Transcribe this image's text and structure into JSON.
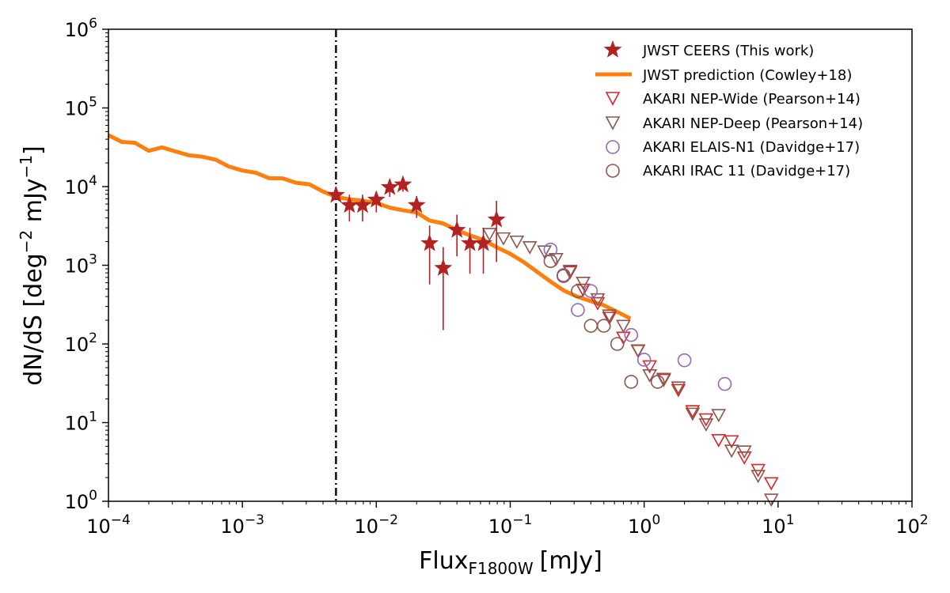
{
  "chart_data": {
    "type": "scatter",
    "x_scale": "log",
    "y_scale": "log",
    "xlim": [
      0.0001,
      100
    ],
    "ylim": [
      1,
      1000000
    ],
    "xlabel": {
      "main": "Flux",
      "sub": "F1800W",
      "unit": "[mJy]"
    },
    "ylabel": {
      "main": "dN/dS [deg",
      "sup1": "−2",
      "mid": " mJy",
      "sup2": "−1",
      "end": "]"
    },
    "x_ticks": [
      {
        "base": "10",
        "exp": "−4"
      },
      {
        "base": "10",
        "exp": "−3"
      },
      {
        "base": "10",
        "exp": "−2"
      },
      {
        "base": "10",
        "exp": "−1"
      },
      {
        "base": "10",
        "exp": "0"
      },
      {
        "base": "10",
        "exp": "1"
      },
      {
        "base": "10",
        "exp": "2"
      }
    ],
    "y_ticks": [
      {
        "base": "10",
        "exp": "0"
      },
      {
        "base": "10",
        "exp": "1"
      },
      {
        "base": "10",
        "exp": "2"
      },
      {
        "base": "10",
        "exp": "3"
      },
      {
        "base": "10",
        "exp": "4"
      },
      {
        "base": "10",
        "exp": "5"
      },
      {
        "base": "10",
        "exp": "6"
      }
    ],
    "vline": {
      "x": 0.005,
      "style": "dash-dot",
      "color": "#000000"
    },
    "legend": {
      "position": "top-right",
      "entries": [
        "JWST CEERS (This work)",
        "JWST prediction (Cowley+18)",
        "AKARI NEP-Wide (Pearson+14)",
        "AKARI NEP-Deep (Pearson+14)",
        "AKARI ELAIS-N1 (Davidge+17)",
        "AKARI IRAC 11 (Davidge+17)"
      ]
    },
    "series": [
      {
        "name": "JWST prediction (Cowley+18)",
        "type": "line",
        "color": "#ff7f0e",
        "points": [
          [
            0.0001,
            45000
          ],
          [
            0.000126,
            37000
          ],
          [
            0.000158,
            36000
          ],
          [
            0.0002,
            28500
          ],
          [
            0.000251,
            31500
          ],
          [
            0.000316,
            28000
          ],
          [
            0.000398,
            25000
          ],
          [
            0.0005,
            24000
          ],
          [
            0.000631,
            22000
          ],
          [
            0.000794,
            18000
          ],
          [
            0.001,
            16000
          ],
          [
            0.00126,
            15000
          ],
          [
            0.00158,
            12800
          ],
          [
            0.002,
            12700
          ],
          [
            0.00251,
            11200
          ],
          [
            0.00316,
            10700
          ],
          [
            0.00398,
            8700
          ],
          [
            0.005,
            7400
          ],
          [
            0.0063,
            6900
          ],
          [
            0.0079,
            6600
          ],
          [
            0.01,
            6200
          ],
          [
            0.0126,
            5400
          ],
          [
            0.0158,
            5000
          ],
          [
            0.02,
            4700
          ],
          [
            0.025,
            3700
          ],
          [
            0.0316,
            3400
          ],
          [
            0.04,
            2800
          ],
          [
            0.05,
            2400
          ],
          [
            0.063,
            2100
          ],
          [
            0.079,
            1700
          ],
          [
            0.1,
            1400
          ],
          [
            0.126,
            1100
          ],
          [
            0.158,
            830
          ],
          [
            0.2,
            620
          ],
          [
            0.25,
            480
          ],
          [
            0.316,
            400
          ],
          [
            0.4,
            350
          ],
          [
            0.5,
            310
          ],
          [
            0.631,
            255
          ],
          [
            0.79,
            210
          ]
        ]
      },
      {
        "name": "JWST CEERS (This work)",
        "type": "scatter",
        "marker": "star",
        "color": "#b22222",
        "points": [
          {
            "x": 0.005,
            "y": 7800,
            "lo": 7800,
            "hi": 7800
          },
          {
            "x": 0.0063,
            "y": 5800,
            "lo": 3600,
            "hi": 7900
          },
          {
            "x": 0.0079,
            "y": 5800,
            "lo": 3600,
            "hi": 7900
          },
          {
            "x": 0.01,
            "y": 6800,
            "lo": 4700,
            "hi": 8700
          },
          {
            "x": 0.0126,
            "y": 9800,
            "lo": 7400,
            "hi": 12200
          },
          {
            "x": 0.0158,
            "y": 10600,
            "lo": 8600,
            "hi": 12700
          },
          {
            "x": 0.02,
            "y": 5800,
            "lo": 4000,
            "hi": 7600
          },
          {
            "x": 0.025,
            "y": 1900,
            "lo": 570,
            "hi": 3200
          },
          {
            "x": 0.0316,
            "y": 920,
            "lo": 150,
            "hi": 1700
          },
          {
            "x": 0.04,
            "y": 2800,
            "lo": 1300,
            "hi": 4400
          },
          {
            "x": 0.05,
            "y": 1900,
            "lo": 780,
            "hi": 3000
          },
          {
            "x": 0.063,
            "y": 1900,
            "lo": 780,
            "hi": 3000
          },
          {
            "x": 0.079,
            "y": 3800,
            "lo": 1100,
            "hi": 6600
          }
        ]
      },
      {
        "name": "AKARI NEP-Wide (Pearson+14)",
        "type": "scatter",
        "marker": "triangle-down",
        "color": "#d62728",
        "points": [
          [
            0.28,
            820
          ],
          [
            0.35,
            490
          ],
          [
            0.45,
            330
          ],
          [
            0.55,
            215
          ],
          [
            0.7,
            120
          ],
          [
            0.9,
            82
          ],
          [
            1.1,
            52
          ],
          [
            1.4,
            35
          ],
          [
            1.8,
            26
          ],
          [
            2.3,
            14
          ],
          [
            2.9,
            11
          ],
          [
            3.6,
            6
          ],
          [
            4.5,
            5.8
          ],
          [
            5.6,
            3.6
          ],
          [
            7.1,
            2.5
          ],
          [
            8.9,
            1.7
          ]
        ]
      },
      {
        "name": "AKARI NEP-Deep (Pearson+14)",
        "type": "scatter",
        "marker": "triangle-down",
        "color": "#8c564b",
        "points": [
          [
            0.07,
            2500
          ],
          [
            0.089,
            2200
          ],
          [
            0.112,
            2000
          ],
          [
            0.14,
            1700
          ],
          [
            0.18,
            1500
          ],
          [
            0.22,
            1200
          ],
          [
            0.28,
            850
          ],
          [
            0.35,
            600
          ],
          [
            0.45,
            370
          ],
          [
            0.55,
            230
          ],
          [
            0.7,
            170
          ],
          [
            0.9,
            83
          ],
          [
            1.1,
            40
          ],
          [
            1.4,
            36
          ],
          [
            1.8,
            28
          ],
          [
            2.3,
            13
          ],
          [
            2.9,
            9.5
          ],
          [
            3.6,
            12.5
          ],
          [
            4.5,
            4.4
          ],
          [
            5.6,
            4.3
          ],
          [
            7.1,
            2.1
          ],
          [
            8.9,
            1.05
          ]
        ]
      },
      {
        "name": "AKARI ELAIS-N1 (Davidge+17)",
        "type": "scatter",
        "marker": "circle-open",
        "color": "#9467bd",
        "points": [
          [
            0.2,
            1580
          ],
          [
            0.25,
            750
          ],
          [
            0.32,
            270
          ],
          [
            0.4,
            470
          ],
          [
            0.8,
            130
          ],
          [
            1.0,
            63
          ],
          [
            2.0,
            62
          ],
          [
            4.0,
            31
          ]
        ]
      },
      {
        "name": "AKARI IRAC 11 (Davidge+17)",
        "type": "scatter",
        "marker": "circle-open",
        "color": "#8c564b",
        "points": [
          [
            0.2,
            1130
          ],
          [
            0.25,
            730
          ],
          [
            0.32,
            470
          ],
          [
            0.4,
            170
          ],
          [
            0.5,
            170
          ],
          [
            0.63,
            100
          ],
          [
            0.8,
            33
          ],
          [
            1.26,
            33
          ]
        ]
      }
    ]
  }
}
